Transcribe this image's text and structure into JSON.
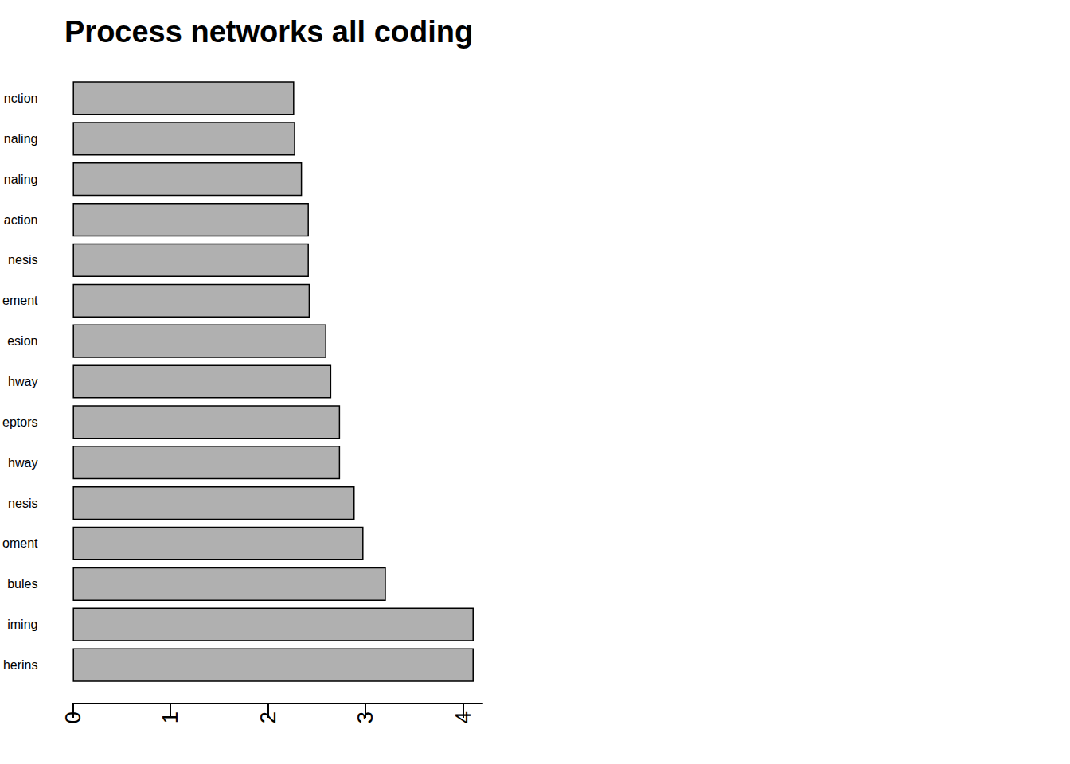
{
  "chart_data": {
    "type": "bar",
    "title": "Process networks all coding",
    "orientation": "horizontal",
    "categories": [
      "herins",
      "iming",
      "bules",
      "oment",
      "nesis",
      "hway",
      "eptors",
      "hway",
      "esion",
      "ement",
      "nesis",
      "action",
      "naling",
      "naling",
      "nction"
    ],
    "values": [
      4.11,
      4.11,
      3.21,
      2.98,
      2.89,
      2.74,
      2.74,
      2.65,
      2.6,
      2.43,
      2.42,
      2.42,
      2.35,
      2.28,
      2.27
    ],
    "color": "#b0b0b0",
    "xlim": [
      0,
      4.2
    ],
    "xticks": [
      0,
      1,
      2,
      3,
      4
    ],
    "grid": false
  }
}
